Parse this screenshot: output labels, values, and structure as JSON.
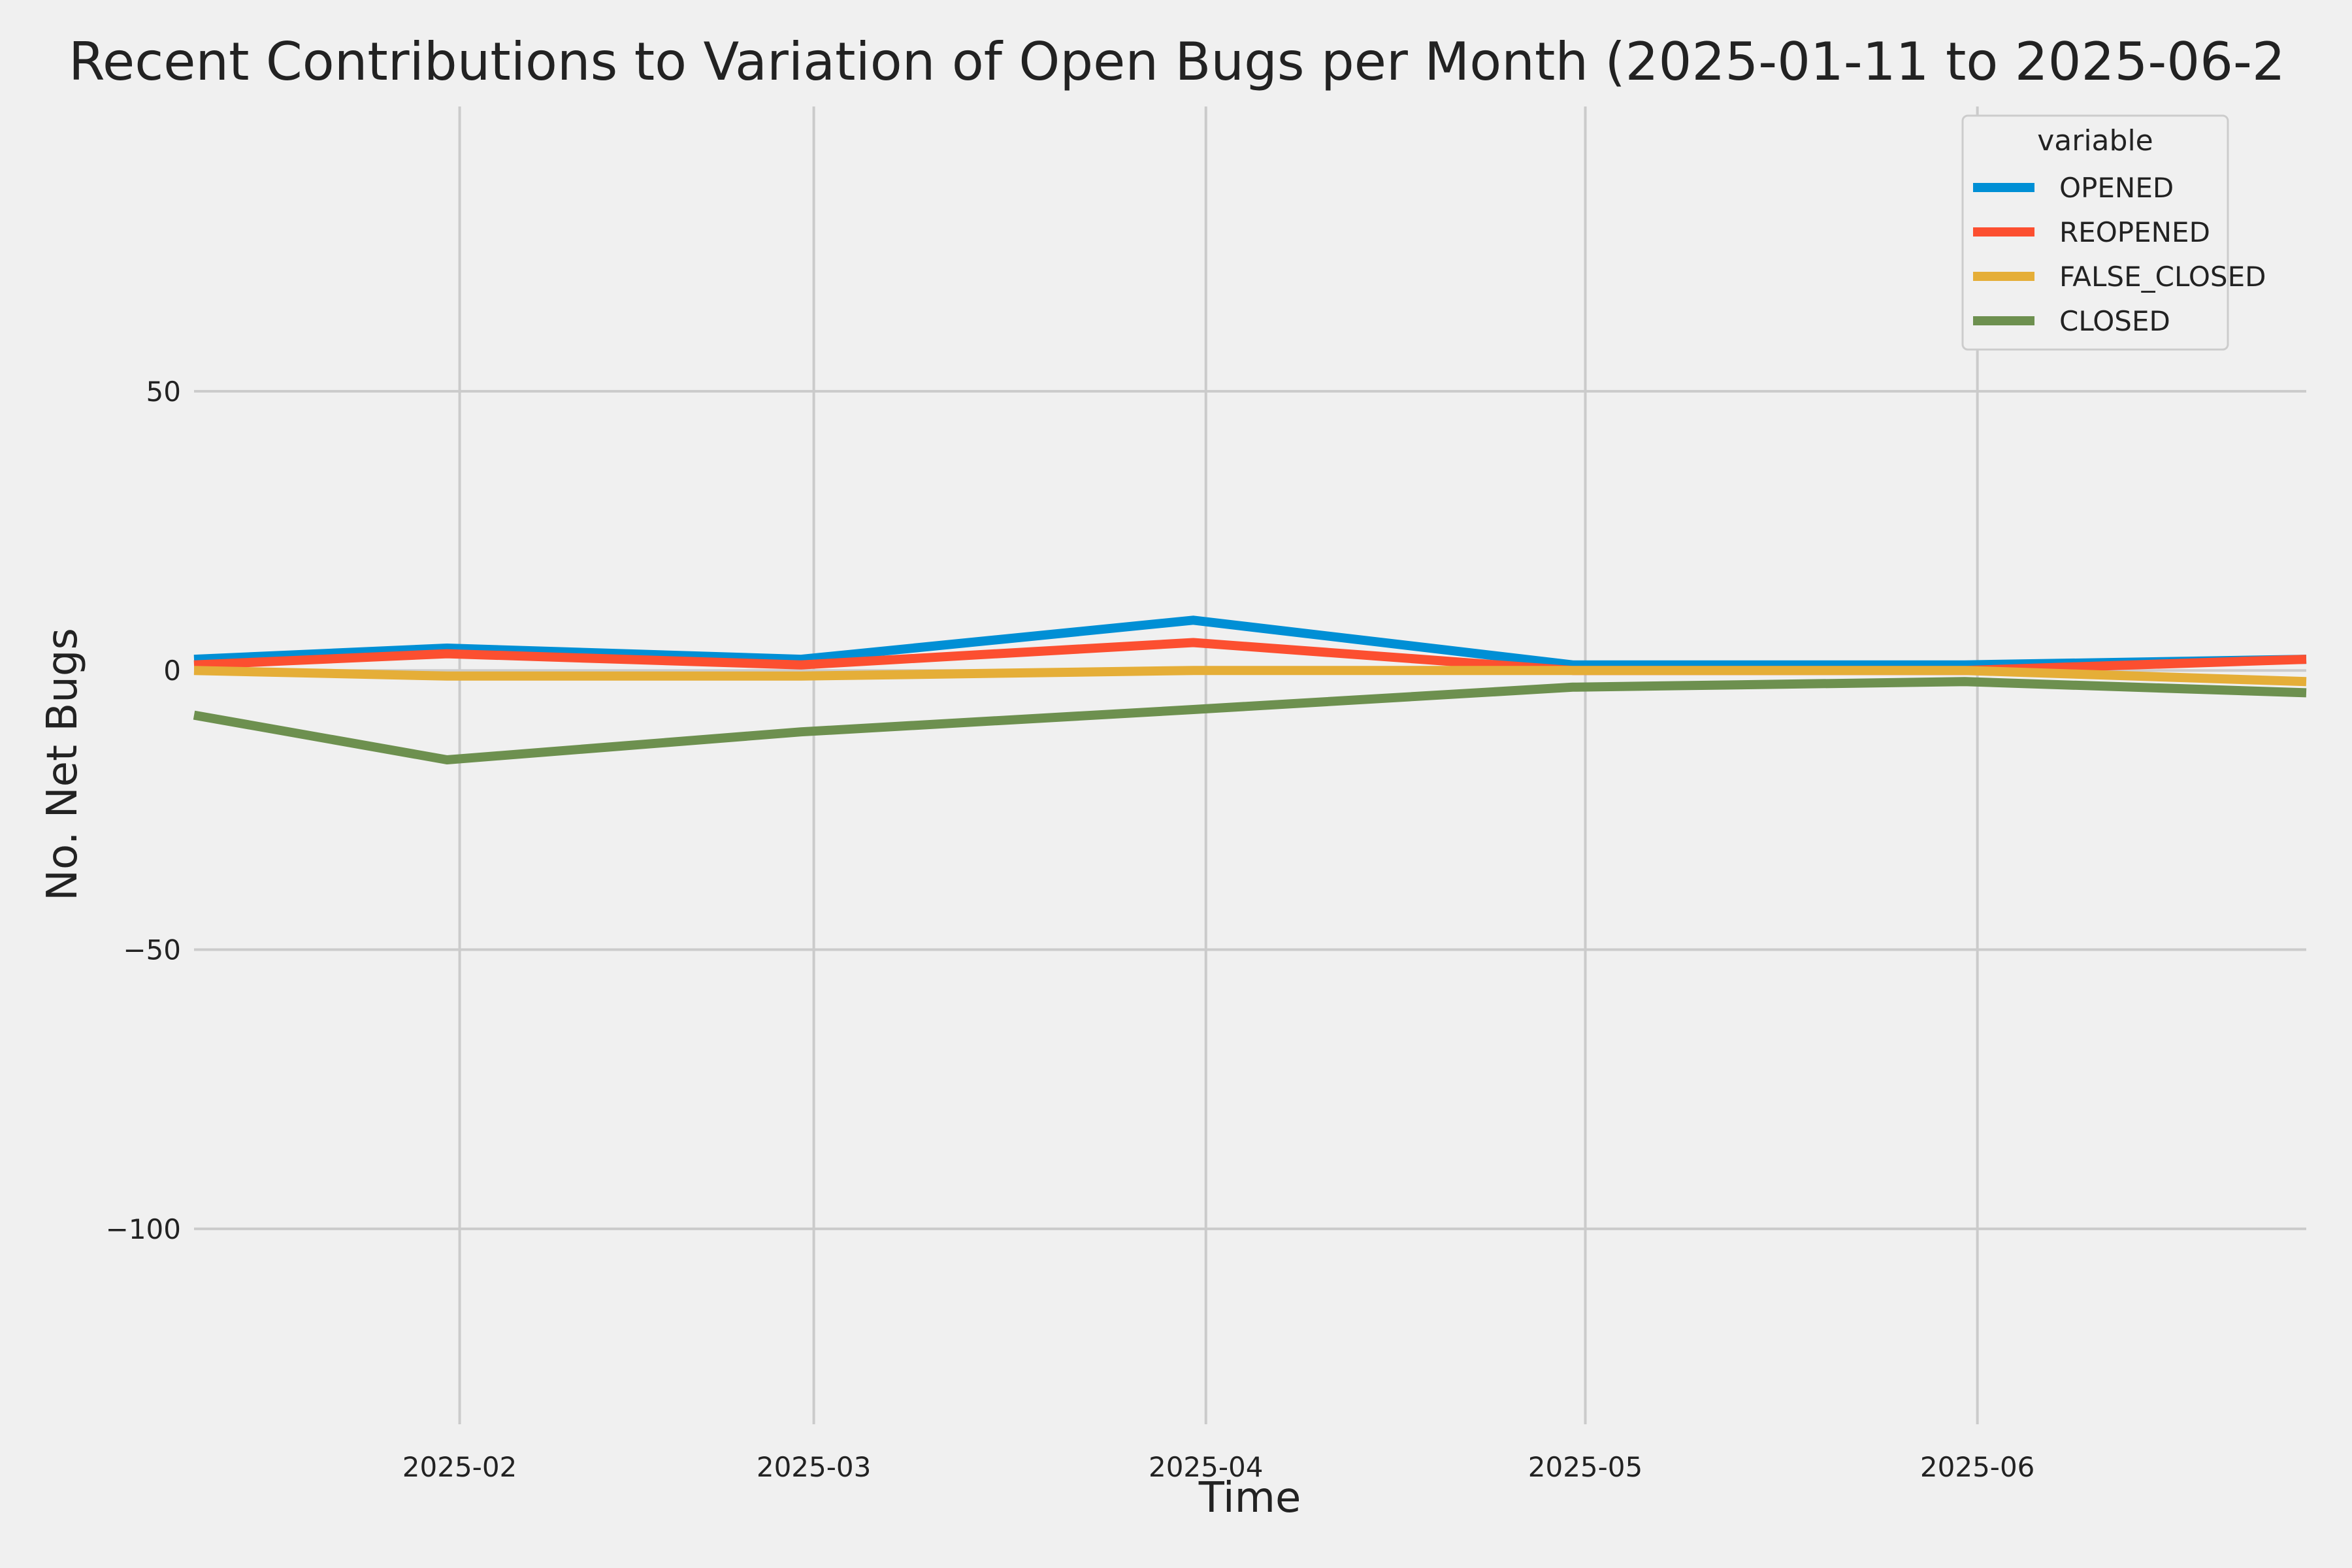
{
  "chart_data": {
    "type": "line",
    "title": "Recent Contributions to Variation of Open Bugs per Month (2025-01-11 to 2025-06-2",
    "xlabel": "Time",
    "ylabel": "No. Net Bugs",
    "x": [
      "2025-01-11",
      "2025-01-31",
      "2025-02-28",
      "2025-03-31",
      "2025-04-30",
      "2025-05-31",
      "2025-06-27"
    ],
    "xlim": [
      "2025-01-11",
      "2025-06-27"
    ],
    "x_ticks": [
      {
        "value": "2025-02-01",
        "label": "2025-02"
      },
      {
        "value": "2025-03-01",
        "label": "2025-03"
      },
      {
        "value": "2025-04-01",
        "label": "2025-04"
      },
      {
        "value": "2025-05-01",
        "label": "2025-05"
      },
      {
        "value": "2025-06-01",
        "label": "2025-06"
      }
    ],
    "ylim": [
      -135,
      101
    ],
    "y_ticks": [
      {
        "value": 50,
        "label": "50"
      },
      {
        "value": 0,
        "label": "0"
      },
      {
        "value": -50,
        "label": "−50"
      },
      {
        "value": -100,
        "label": "−100"
      }
    ],
    "grid": true,
    "legend": {
      "title": "variable",
      "position": "top-right"
    },
    "series": [
      {
        "name": "OPENED",
        "color": "#008fd5",
        "values": [
          2,
          4,
          2,
          9,
          1,
          1,
          2
        ]
      },
      {
        "name": "REOPENED",
        "color": "#fc4f30",
        "values": [
          1,
          3,
          1,
          5,
          0,
          0,
          2
        ]
      },
      {
        "name": "FALSE_CLOSED",
        "color": "#e5ae38",
        "values": [
          0,
          -1,
          -1,
          0,
          0,
          0,
          -2
        ]
      },
      {
        "name": "CLOSED",
        "color": "#6d904f",
        "values": [
          -8,
          -16,
          -11,
          -7,
          -3,
          -2,
          -4
        ]
      }
    ]
  }
}
